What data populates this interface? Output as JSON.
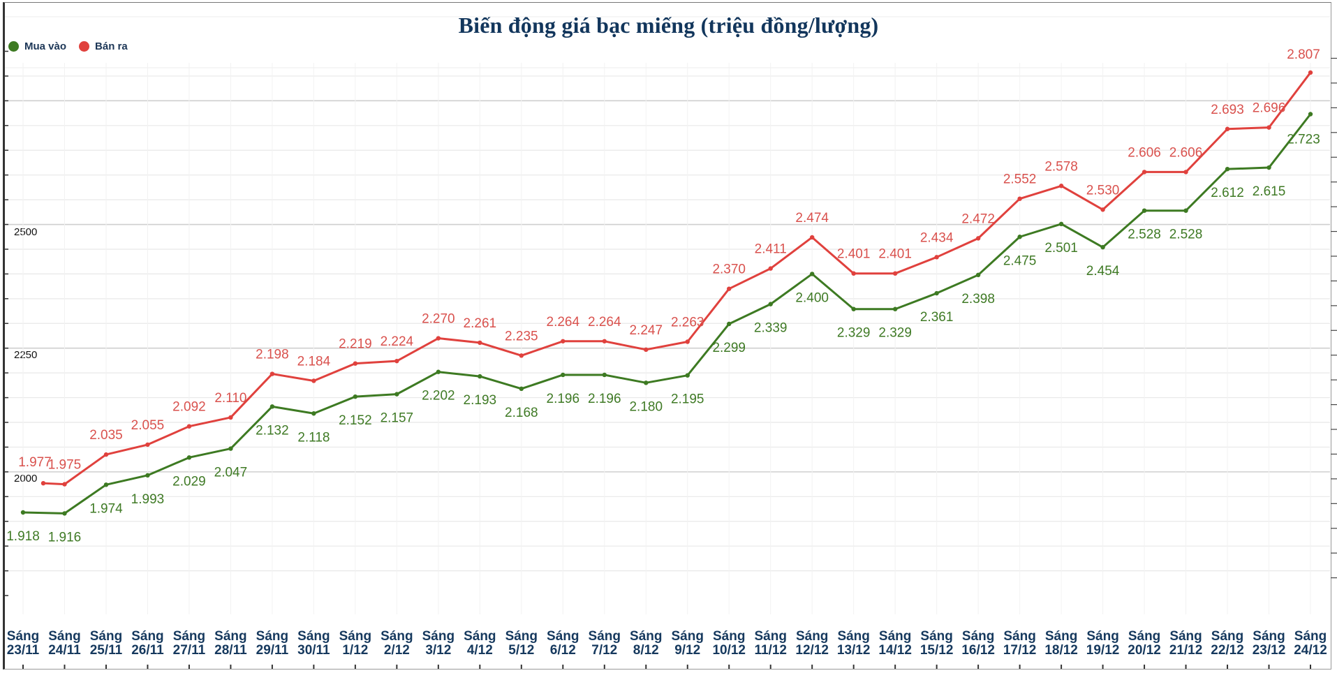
{
  "chart_data": {
    "type": "line",
    "title": "Biến động giá bạc miếng (triệu đồng/lượng)",
    "xlabel": "",
    "ylabel": "",
    "ylim": [
      1730,
      2850
    ],
    "yticks": [
      2000,
      2250,
      2500
    ],
    "grid": true,
    "legend_position": "top-left",
    "categories": [
      "Sáng 23/11",
      "Sáng 24/11",
      "Sáng 25/11",
      "Sáng 26/11",
      "Sáng 27/11",
      "Sáng 28/11",
      "Sáng 29/11",
      "Sáng 30/11",
      "Sáng 1/12",
      "Sáng 2/12",
      "Sáng 3/12",
      "Sáng 4/12",
      "Sáng 5/12",
      "Sáng 6/12",
      "Sáng 7/12",
      "Sáng 8/12",
      "Sáng 9/12",
      "Sáng 10/12",
      "Sáng 11/12",
      "Sáng 12/12",
      "Sáng 13/12",
      "Sáng 14/12",
      "Sáng 15/12",
      "Sáng 16/12",
      "Sáng 17/12",
      "Sáng 18/12",
      "Sáng 19/12",
      "Sáng 20/12",
      "Sáng 21/12",
      "Sáng 22/12",
      "Sáng 23/12",
      "Sáng 24/12"
    ],
    "series": [
      {
        "name": "Mua vào",
        "color": "#3d7a22",
        "values": [
          1.918,
          1.916,
          1.974,
          1.993,
          2.029,
          2.047,
          2.132,
          2.118,
          2.152,
          2.157,
          2.202,
          2.193,
          2.168,
          2.196,
          2.196,
          2.18,
          2.195,
          2.299,
          2.339,
          2.4,
          2.329,
          2.329,
          2.361,
          2.398,
          2.475,
          2.501,
          2.454,
          2.528,
          2.528,
          2.612,
          2.615,
          2.723
        ]
      },
      {
        "name": "Bán ra",
        "color": "#e0413d",
        "values": [
          1.977,
          1.975,
          2.035,
          2.055,
          2.092,
          2.11,
          2.198,
          2.184,
          2.219,
          2.224,
          2.27,
          2.261,
          2.235,
          2.264,
          2.264,
          2.247,
          2.263,
          2.37,
          2.411,
          2.474,
          2.401,
          2.401,
          2.434,
          2.472,
          2.552,
          2.578,
          2.53,
          2.606,
          2.606,
          2.693,
          2.696,
          2.807
        ]
      }
    ]
  },
  "header": {
    "title": "Biến động giá bạc miếng (triệu đồng/lượng)"
  },
  "legend": {
    "buy_label": "Mua vào",
    "sell_label": "Bán ra",
    "buy_color": "#3d7a22",
    "sell_color": "#e0413d"
  },
  "yaxis": {
    "tick_2500": "2500",
    "tick_2250": "2250",
    "tick_2000": "2000"
  }
}
